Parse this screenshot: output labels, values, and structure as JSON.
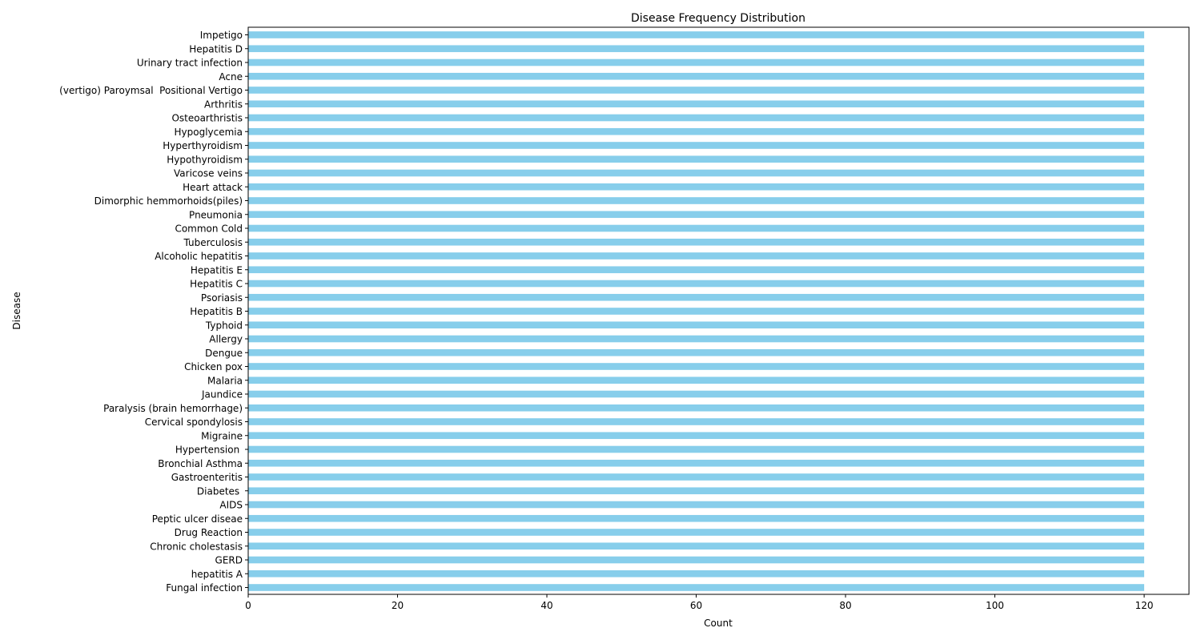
{
  "chart_data": {
    "type": "bar",
    "orientation": "horizontal",
    "title": "Disease Frequency Distribution",
    "xlabel": "Count",
    "ylabel": "Disease",
    "xlim": [
      0,
      126
    ],
    "xticks": [
      "0",
      "20",
      "40",
      "60",
      "80",
      "100",
      "120"
    ],
    "bar_color": "#87ceeb",
    "grid": false,
    "categories": [
      "Fungal infection",
      "hepatitis A",
      "GERD",
      "Chronic cholestasis",
      "Drug Reaction",
      "Peptic ulcer diseae",
      "AIDS",
      "Diabetes ",
      "Gastroenteritis",
      "Bronchial Asthma",
      "Hypertension ",
      "Migraine",
      "Cervical spondylosis",
      "Paralysis (brain hemorrhage)",
      "Jaundice",
      "Malaria",
      "Chicken pox",
      "Dengue",
      "Allergy",
      "Typhoid",
      "Hepatitis B",
      "Psoriasis",
      "Hepatitis C",
      "Hepatitis E",
      "Alcoholic hepatitis",
      "Tuberculosis",
      "Common Cold",
      "Pneumonia",
      "Dimorphic hemmorhoids(piles)",
      "Heart attack",
      "Varicose veins",
      "Hypothyroidism",
      "Hyperthyroidism",
      "Hypoglycemia",
      "Osteoarthristis",
      "Arthritis",
      "(vertigo) Paroymsal  Positional Vertigo",
      "Acne",
      "Urinary tract infection",
      "Hepatitis D",
      "Impetigo"
    ],
    "values": [
      120,
      120,
      120,
      120,
      120,
      120,
      120,
      120,
      120,
      120,
      120,
      120,
      120,
      120,
      120,
      120,
      120,
      120,
      120,
      120,
      120,
      120,
      120,
      120,
      120,
      120,
      120,
      120,
      120,
      120,
      120,
      120,
      120,
      120,
      120,
      120,
      120,
      120,
      120,
      120,
      120
    ]
  }
}
